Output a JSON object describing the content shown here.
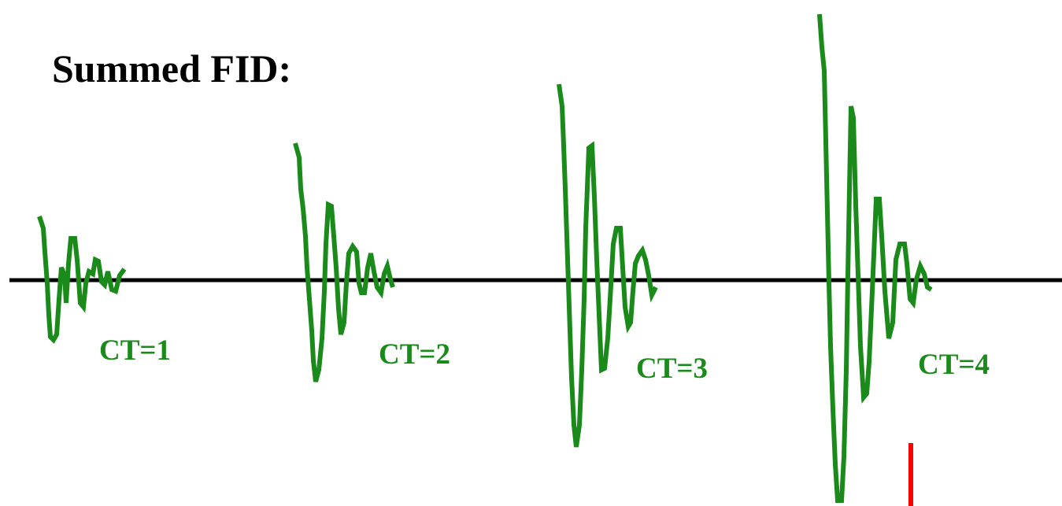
{
  "title": "Summed FID:",
  "colors": {
    "baseline": "#000000",
    "fid": "#1a8a1a",
    "marker": "#ff0000"
  },
  "fids": [
    {
      "label": "CT=1",
      "amplitude_scale": 1
    },
    {
      "label": "CT=2",
      "amplitude_scale": 2
    },
    {
      "label": "CT=3",
      "amplitude_scale": 3
    },
    {
      "label": "CT=4",
      "amplitude_scale": 4
    }
  ]
}
